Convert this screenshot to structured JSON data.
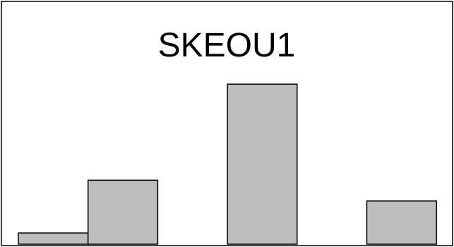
{
  "chart_data": {
    "type": "bar",
    "title": "SKEOU1",
    "xlabel": "",
    "ylabel": "",
    "categories": [
      "",
      "",
      "",
      "",
      "",
      ""
    ],
    "values": [
      0.07,
      0.4,
      0,
      1.0,
      0,
      0.27
    ],
    "ylim": [
      0,
      1.1
    ],
    "grid": false,
    "axes_visible": false,
    "colors": {
      "bar_fill": "#bebebe",
      "bar_stroke": "#000000",
      "background": "#ffffff"
    }
  }
}
